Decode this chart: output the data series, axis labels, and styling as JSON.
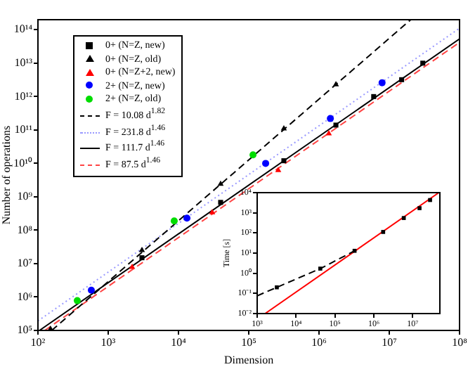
{
  "chart_data": [
    {
      "type": "scatter",
      "xlabel": "Dimension",
      "ylabel": "Number of operations",
      "log": "xy",
      "legend": "top left",
      "xlim": [
        100,
        100000000
      ],
      "ylim": [
        100000,
        200000000000000
      ],
      "xticks": [
        {
          "value": 100,
          "label": "10²"
        },
        {
          "value": 1000,
          "label": "10³"
        },
        {
          "value": 10000,
          "label": "10⁴"
        },
        {
          "value": 100000,
          "label": "10⁵"
        },
        {
          "value": 1000000,
          "label": "10⁶"
        },
        {
          "value": 10000000,
          "label": "10⁷"
        },
        {
          "value": 100000000,
          "label": "10⁸"
        }
      ],
      "yticks": [
        {
          "value": 100000,
          "label": "10⁵"
        },
        {
          "value": 1000000,
          "label": "10⁶"
        },
        {
          "value": 10000000,
          "label": "10⁷"
        },
        {
          "value": 100000000,
          "label": "10⁸"
        },
        {
          "value": 1000000000,
          "label": "10⁹"
        },
        {
          "value": 10000000000,
          "label": "10¹⁰"
        },
        {
          "value": 100000000000,
          "label": "10¹¹"
        },
        {
          "value": 1000000000000,
          "label": "10¹²"
        },
        {
          "value": 10000000000000,
          "label": "10¹³"
        },
        {
          "value": 100000000000000,
          "label": "10¹⁴"
        }
      ],
      "series": [
        {
          "name": "0+ (N=Z, new)",
          "type": "scatter",
          "marker": "square",
          "color": "#000000",
          "x": [
            3020,
            39800,
            316000,
            1740000,
            6000000,
            15000000,
            30000000
          ],
          "values": [
            15000000,
            680000000,
            12000000000,
            140000000000,
            1000000000000,
            3200000000000,
            10000000000000
          ]
        },
        {
          "name": "0+ (N=Z, old)",
          "type": "scatter",
          "marker": "triangle",
          "color": "#000000",
          "x": [
            151,
            3020,
            39800,
            316000,
            1740000
          ],
          "values": [
            110000,
            25000000,
            2400000000,
            110000000000,
            2300000000000
          ]
        },
        {
          "name": "0+ (N=Z+2, new)",
          "type": "scatter",
          "marker": "triangle",
          "color": "#ff0000",
          "x": [
            2190,
            30200,
            263000,
            1380000
          ],
          "values": [
            7800000,
            340000000,
            6200000000,
            78000000000
          ]
        },
        {
          "name": "2+ (N=Z, new)",
          "type": "scatter",
          "marker": "circle",
          "color": "#0000ff",
          "x": [
            575,
            13200,
            174000,
            1450000,
            7900000
          ],
          "values": [
            1600000,
            230000000,
            10000000000,
            220000000000,
            2600000000000
          ]
        },
        {
          "name": "2+ (N=Z, old)",
          "type": "scatter",
          "marker": "circle",
          "color": "#00dd00",
          "x": [
            363,
            8700,
            115000
          ],
          "values": [
            780000,
            190000000,
            18000000000
          ]
        },
        {
          "name": "F = 10.08 d$^{1.82}$",
          "type": "line",
          "line_style": "dashed",
          "color": "#000000",
          "x": [
            157,
            20000000
          ],
          "values": [
            100000,
            196000000000000
          ]
        },
        {
          "name": "F = 231.8 d$^{1.46}$",
          "type": "line",
          "line_style": "dotted",
          "color": "#9999ff",
          "x": [
            100,
            100000000
          ],
          "values": [
            193000,
            111000000000000
          ]
        },
        {
          "name": "F = 111.7 d$^{1.46}$",
          "type": "line",
          "line_style": "solid",
          "color": "#000000",
          "x": [
            105,
            100000000
          ],
          "values": [
            100000,
            53500000000000
          ]
        },
        {
          "name": "F = 87.5 d$^{1.46}$",
          "type": "line",
          "line_style": "dashed",
          "color": "#ff4444",
          "x": [
            125,
            100000000
          ],
          "values": [
            100000,
            41900000000000
          ]
        }
      ]
    },
    {
      "type": "scatter",
      "ylabel": "Time [s]",
      "log": "xy",
      "xlim": [
        1000,
        50000000
      ],
      "ylim": [
        0.01,
        10000
      ],
      "xticks": [
        {
          "value": 1000,
          "label": "10³"
        },
        {
          "value": 10000,
          "label": "10⁴"
        },
        {
          "value": 100000,
          "label": "10⁵"
        },
        {
          "value": 1000000,
          "label": "10⁶"
        },
        {
          "value": 10000000,
          "label": "10⁷"
        }
      ],
      "yticks": [
        {
          "value": 0.01,
          "label": "10⁻²"
        },
        {
          "value": 0.1,
          "label": "10⁻¹"
        },
        {
          "value": 1,
          "label": "10⁰"
        },
        {
          "value": 10,
          "label": "10¹"
        },
        {
          "value": 100,
          "label": "10²"
        },
        {
          "value": 1000,
          "label": "10³"
        },
        {
          "value": 10000,
          "label": "10⁴"
        }
      ],
      "series": [
        {
          "type": "line",
          "line_style": "dashed",
          "color": "#000000",
          "x": [
            1000,
            3200,
            42000,
            320000
          ],
          "values": [
            0.076,
            0.2,
            1.7,
            13
          ]
        },
        {
          "type": "line",
          "line_style": "solid",
          "color": "#ff0000",
          "x": [
            1600,
            47000000
          ],
          "values": [
            0.01,
            10000
          ]
        },
        {
          "type": "scatter",
          "marker": "square",
          "color": "#000000",
          "x": [
            3200,
            42000,
            320000,
            1740000,
            5900000,
            15000000,
            28000000
          ],
          "values": [
            0.2,
            1.7,
            13,
            112,
            550,
            1700,
            4300
          ]
        }
      ]
    }
  ]
}
